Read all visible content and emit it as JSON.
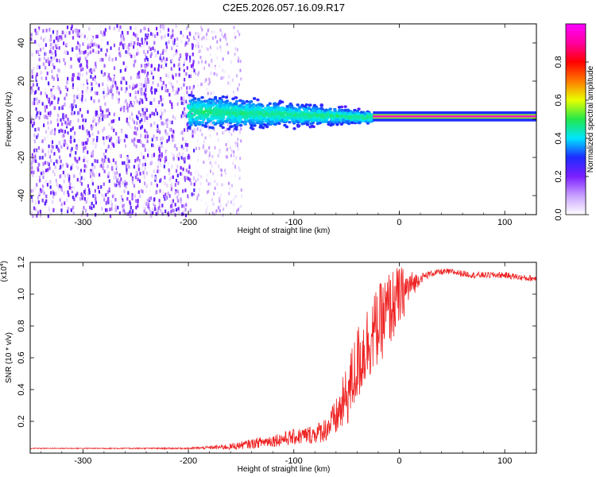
{
  "title": "C2E5.2026.057.16.09.R17",
  "chart_data": [
    {
      "type": "heatmap",
      "xlabel": "Height of straight line (km)",
      "ylabel": "Frequency (Hz)",
      "xlim": [
        -350,
        130
      ],
      "ylim": [
        -50,
        50
      ],
      "x_ticks": [
        -300,
        -200,
        -100,
        0,
        100
      ],
      "y_ticks": [
        -40,
        -20,
        0,
        20,
        40
      ],
      "colorbar": {
        "label": "Normalized spectral amplitude",
        "range": [
          0,
          1
        ],
        "ticks": [
          "0.0",
          "0.2",
          "0.4",
          "0.6",
          "0.8"
        ],
        "tick_values": [
          0,
          0.2,
          0.4,
          0.6,
          0.8
        ],
        "colors": [
          "#ffffff",
          "#c9a0ff",
          "#7b1fff",
          "#1c2bff",
          "#00e5ff",
          "#22e84a",
          "#e8ff00",
          "#ff7a00",
          "#ff0000",
          "#ff00a0",
          "#ff00ff"
        ]
      },
      "regions": [
        {
          "x": [
            -350,
            -195
          ],
          "desc": "noise",
          "freq_range": [
            -50,
            50
          ],
          "amplitude": [
            0.0,
            0.25
          ]
        },
        {
          "x": [
            -195,
            -150
          ],
          "desc": "fading noise",
          "freq_range": [
            -50,
            50
          ],
          "amplitude": [
            0.0,
            0.12
          ]
        },
        {
          "x": [
            -200,
            -25
          ],
          "desc": "signal band",
          "center_start": 4,
          "center_end": 1,
          "halfwidth_start": 9,
          "halfwidth_end": 3,
          "amplitude": [
            0.2,
            0.45
          ]
        },
        {
          "x": [
            -25,
            130
          ],
          "desc": "strong tone",
          "center": 1.5,
          "halfwidth": 1.2,
          "amplitude": [
            0.85,
            0.95
          ]
        }
      ]
    },
    {
      "type": "line",
      "xlabel": "Height of straight line (km)",
      "ylabel": "SNR (10 * v/v)",
      "exponent_label": "(x10",
      "exponent_power": "4",
      "exponent_close": ")",
      "xlim": [
        -350,
        130
      ],
      "ylim": [
        0,
        1.2
      ],
      "x_ticks": [
        -300,
        -200,
        -100,
        0,
        100
      ],
      "y_ticks": [
        "0.2",
        "0.4",
        "0.6",
        "0.8",
        "1.0",
        "1.2"
      ],
      "y_tick_values": [
        0.2,
        0.4,
        0.6,
        0.8,
        1.0,
        1.2
      ],
      "color": "#ee2222",
      "series": [
        {
          "x": [
            -350,
            -300,
            -250,
            -200,
            -180,
            -160,
            -140,
            -120,
            -100,
            -80,
            -70,
            -60,
            -50,
            -40,
            -30,
            -20,
            -10,
            0,
            10,
            20,
            30,
            40,
            50,
            60,
            70,
            80,
            90,
            100,
            110,
            120,
            130
          ],
          "values": [
            0.03,
            0.03,
            0.03,
            0.03,
            0.035,
            0.04,
            0.06,
            0.08,
            0.1,
            0.12,
            0.15,
            0.22,
            0.35,
            0.55,
            0.7,
            0.8,
            0.9,
            0.98,
            1.05,
            1.1,
            1.13,
            1.14,
            1.14,
            1.13,
            1.12,
            1.12,
            1.12,
            1.12,
            1.11,
            1.1,
            1.1
          ],
          "noise_amplitude": [
            0.003,
            0.003,
            0.004,
            0.005,
            0.01,
            0.02,
            0.03,
            0.04,
            0.05,
            0.06,
            0.08,
            0.12,
            0.2,
            0.25,
            0.25,
            0.25,
            0.25,
            0.2,
            0.1,
            0.03,
            0.02,
            0.02,
            0.02,
            0.02,
            0.02,
            0.02,
            0.02,
            0.02,
            0.02,
            0.02,
            0.02
          ]
        }
      ]
    }
  ]
}
